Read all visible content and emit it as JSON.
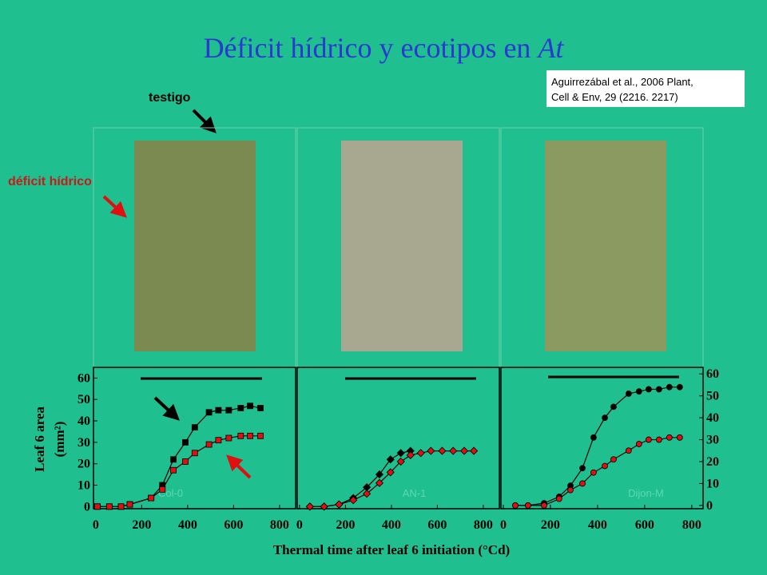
{
  "slide": {
    "title": "Déficit hídrico y ecotipos en ",
    "title_italic": "At",
    "citation_line1": "Aguirrezábal  et al., 2006 Plant,",
    "citation_line2": "Cell & Env, 29 (2216. 2217)",
    "label_control": "testigo",
    "label_deficit": "déficit hídrico"
  },
  "chart_data": [
    {
      "type": "line",
      "label": "Col-0",
      "ylabel": "Leaf 6 area",
      "ylabel_unit": "(mm²)",
      "marker": "square",
      "yaxis_side": "left",
      "xlim": [
        -10,
        870
      ],
      "ylim": [
        -1,
        65
      ],
      "xticks": [
        0,
        200,
        400,
        600,
        800
      ],
      "yticks": [
        0,
        10,
        20,
        30,
        40,
        50,
        60
      ],
      "series": [
        {
          "color": "#000000",
          "x": [
            7,
            59,
            110,
            148,
            241,
            290,
            338,
            390,
            431,
            493,
            534,
            579,
            631,
            672,
            717
          ],
          "values": [
            0,
            0,
            0,
            1,
            4,
            10,
            22,
            30,
            37,
            44,
            45,
            45,
            46,
            47,
            46
          ]
        },
        {
          "color": "#e01010",
          "x": [
            7,
            59,
            110,
            148,
            241,
            290,
            338,
            390,
            431,
            493,
            534,
            579,
            631,
            672,
            717
          ],
          "values": [
            0,
            0,
            0,
            1,
            4,
            8,
            17,
            21,
            25,
            29,
            31,
            32,
            33,
            33,
            33
          ]
        }
      ]
    },
    {
      "type": "line",
      "label": "AN-1",
      "xlabel": "Thermal  time after leaf 6 initiation (°Cd)",
      "marker": "diamond",
      "yaxis_side": "none",
      "xlim": [
        -10,
        870
      ],
      "ylim": [
        -1,
        65
      ],
      "xticks": [
        0,
        200,
        400,
        600,
        800
      ],
      "series": [
        {
          "color": "#000000",
          "x": [
            45,
            107,
            172,
            234,
            293,
            348,
            396,
            441,
            483
          ],
          "values": [
            0,
            0,
            1,
            4,
            9,
            15,
            22,
            25,
            26
          ]
        },
        {
          "color": "#e01010",
          "x": [
            45,
            107,
            172,
            234,
            293,
            348,
            396,
            441,
            483,
            528,
            572,
            621,
            669,
            717,
            759
          ],
          "values": [
            0,
            0,
            1,
            3,
            6,
            11,
            16,
            21,
            24,
            25,
            26,
            26,
            26,
            26,
            26
          ]
        }
      ]
    },
    {
      "type": "line",
      "label": "Dijon-M",
      "marker": "circle",
      "yaxis_side": "right",
      "xlim": [
        -10,
        848
      ],
      "ylim": [
        -1.5,
        63
      ],
      "xticks": [
        0,
        200,
        400,
        600,
        800
      ],
      "yticks": [
        0,
        10,
        20,
        30,
        40,
        50,
        60
      ],
      "series": [
        {
          "color": "#000000",
          "x": [
            51,
            105,
            173,
            237,
            285,
            336,
            383,
            431,
            468,
            532,
            576,
            617,
            661,
            705,
            749
          ],
          "values": [
            0,
            0,
            1,
            4,
            9,
            17,
            31,
            40,
            45,
            51,
            52,
            53,
            53,
            54,
            54
          ]
        },
        {
          "color": "#e01010",
          "x": [
            51,
            105,
            173,
            237,
            285,
            336,
            383,
            431,
            468,
            532,
            576,
            617,
            661,
            705,
            749
          ],
          "values": [
            0,
            0,
            0,
            3,
            7,
            10,
            15,
            18,
            21,
            25,
            28,
            30,
            30,
            31,
            31
          ]
        }
      ]
    }
  ]
}
